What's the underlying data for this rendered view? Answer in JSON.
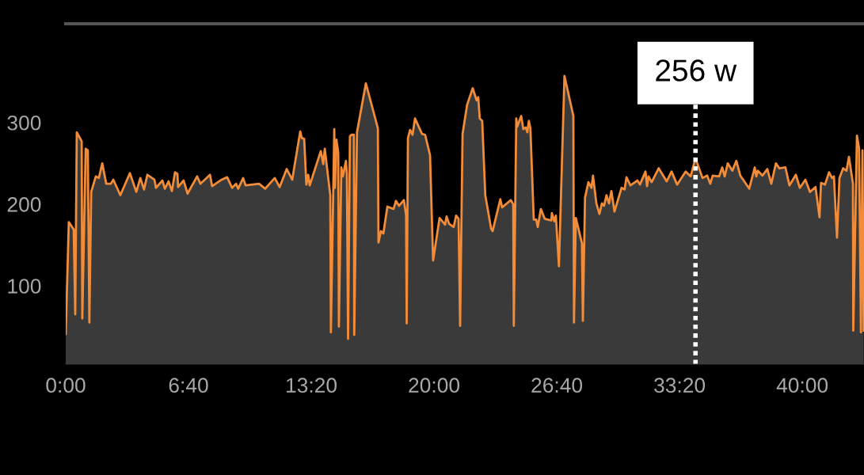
{
  "chart_data": {
    "type": "area",
    "x": [
      0,
      10,
      26,
      31,
      36,
      52,
      54,
      65,
      72,
      77,
      83,
      98,
      108,
      119,
      132,
      147,
      155,
      178,
      209,
      230,
      243,
      255,
      266,
      289,
      294,
      315,
      323,
      335,
      346,
      356,
      364,
      366,
      384,
      397,
      428,
      439,
      470,
      477,
      508,
      526,
      542,
      555,
      562,
      578,
      586,
      630,
      650,
      681,
      697,
      720,
      738,
      764,
      769,
      777,
      784,
      790,
      795,
      831,
      839,
      844,
      862,
      864,
      875,
      877,
      882,
      888,
      890,
      898,
      903,
      913,
      916,
      920,
      926,
      931,
      939,
      940,
      949,
      978,
      1017,
      1019,
      1027,
      1035,
      1048,
      1068,
      1076,
      1086,
      1102,
      1109,
      1111,
      1115,
      1122,
      1130,
      1138,
      1161,
      1171,
      1187,
      1197,
      1218,
      1236,
      1241,
      1249,
      1264,
      1272,
      1280,
      1285,
      1293,
      1308,
      1326,
      1339,
      1344,
      1349,
      1357,
      1367,
      1386,
      1391,
      1416,
      1422,
      1450,
      1458,
      1460,
      1468,
      1471,
      1484,
      1491,
      1499,
      1504,
      1509,
      1514,
      1525,
      1533,
      1538,
      1548,
      1561,
      1582,
      1584,
      1592,
      1597,
      1607,
      1625,
      1654,
      1656,
      1662,
      1682,
      1685,
      1692,
      1703,
      1713,
      1718,
      1729,
      1739,
      1747,
      1754,
      1762,
      1770,
      1778,
      1788,
      1811,
      1821,
      1827,
      1840,
      1863,
      1871,
      1889,
      1894,
      1899,
      1909,
      1932,
      1958,
      1974,
      1992,
      2020,
      2036,
      2052,
      2075,
      2090,
      2100,
      2108,
      2129,
      2139,
      2147,
      2157,
      2172,
      2185,
      2198,
      2227,
      2245,
      2250,
      2255,
      2270,
      2286,
      2299,
      2314,
      2325,
      2345,
      2358,
      2379,
      2392,
      2410,
      2425,
      2443,
      2456,
      2461,
      2474,
      2487,
      2497,
      2503,
      2513,
      2521,
      2533,
      2544,
      2552,
      2565,
      2566,
      2578,
      2585,
      2591,
      2596,
      2600
    ],
    "series": [
      {
        "color": "#f28c38",
        "values": [
          41,
          178,
          169,
          65,
          288,
          277,
          60,
          268,
          266,
          55,
          215,
          234,
          232,
          250,
          225,
          225,
          230,
          211,
          238,
          215,
          232,
          218,
          236,
          230,
          220,
          229,
          219,
          228,
          216,
          239,
          237,
          221,
          229,
          213,
          234,
          225,
          236,
          222,
          230,
          233,
          220,
          225,
          219,
          232,
          223,
          225,
          219,
          232,
          221,
          243,
          230,
          289,
          281,
          280,
          224,
          236,
          223,
          265,
          249,
          268,
          211,
          43,
          292,
          220,
          279,
          263,
          50,
          245,
          234,
          253,
          237,
          35,
          283,
          285,
          285,
          40,
          288,
          348,
          293,
          153,
          167,
          164,
          197,
          194,
          204,
          198,
          205,
          186,
          54,
          281,
          291,
          285,
          305,
          286,
          285,
          260,
          131,
          183,
          175,
          185,
          176,
          172,
          186,
          182,
          51,
          286,
          322,
          342,
          327,
          331,
          305,
          302,
          211,
          170,
          167,
          206,
          196,
          205,
          200,
          51,
          305,
          295,
          308,
          292,
          294,
          288,
          302,
          293,
          181,
          181,
          172,
          194,
          182,
          180,
          189,
          179,
          186,
          124,
          357,
          308,
          55,
          183,
          152,
          57,
          208,
          227,
          220,
          235,
          201,
          188,
          201,
          198,
          211,
          201,
          216,
          191,
          220,
          218,
          233,
          223,
          229,
          224,
          240,
          222,
          234,
          227,
          244,
          228,
          240,
          224,
          240,
          234,
          256,
          232,
          235,
          225,
          235,
          234,
          245,
          234,
          250,
          241,
          253,
          235,
          219,
          245,
          234,
          241,
          235,
          243,
          225,
          250,
          244,
          245,
          223,
          236,
          220,
          230,
          215,
          221,
          184,
          226,
          224,
          239,
          232,
          234,
          159,
          232,
          244,
          241,
          258,
          225,
          45,
          284,
          268,
          43,
          266,
          45
        ]
      }
    ],
    "xlim": [
      0,
      2601
    ],
    "ylim": [
      4,
      421
    ],
    "xticks": [
      {
        "value": 0,
        "label": "0:00"
      },
      {
        "value": 400,
        "label": "6:40"
      },
      {
        "value": 800,
        "label": "13:20"
      },
      {
        "value": 1200,
        "label": "20:00"
      },
      {
        "value": 1600,
        "label": "26:40"
      },
      {
        "value": 2000,
        "label": "33:20"
      },
      {
        "value": 2400,
        "label": "40:00"
      }
    ],
    "yticks": [
      100,
      200,
      300
    ],
    "ref_lines": [
      {
        "axis": "x",
        "value": 2052,
        "label": "256 w",
        "color": "#ffffff",
        "line_style": "dotted"
      }
    ]
  }
}
